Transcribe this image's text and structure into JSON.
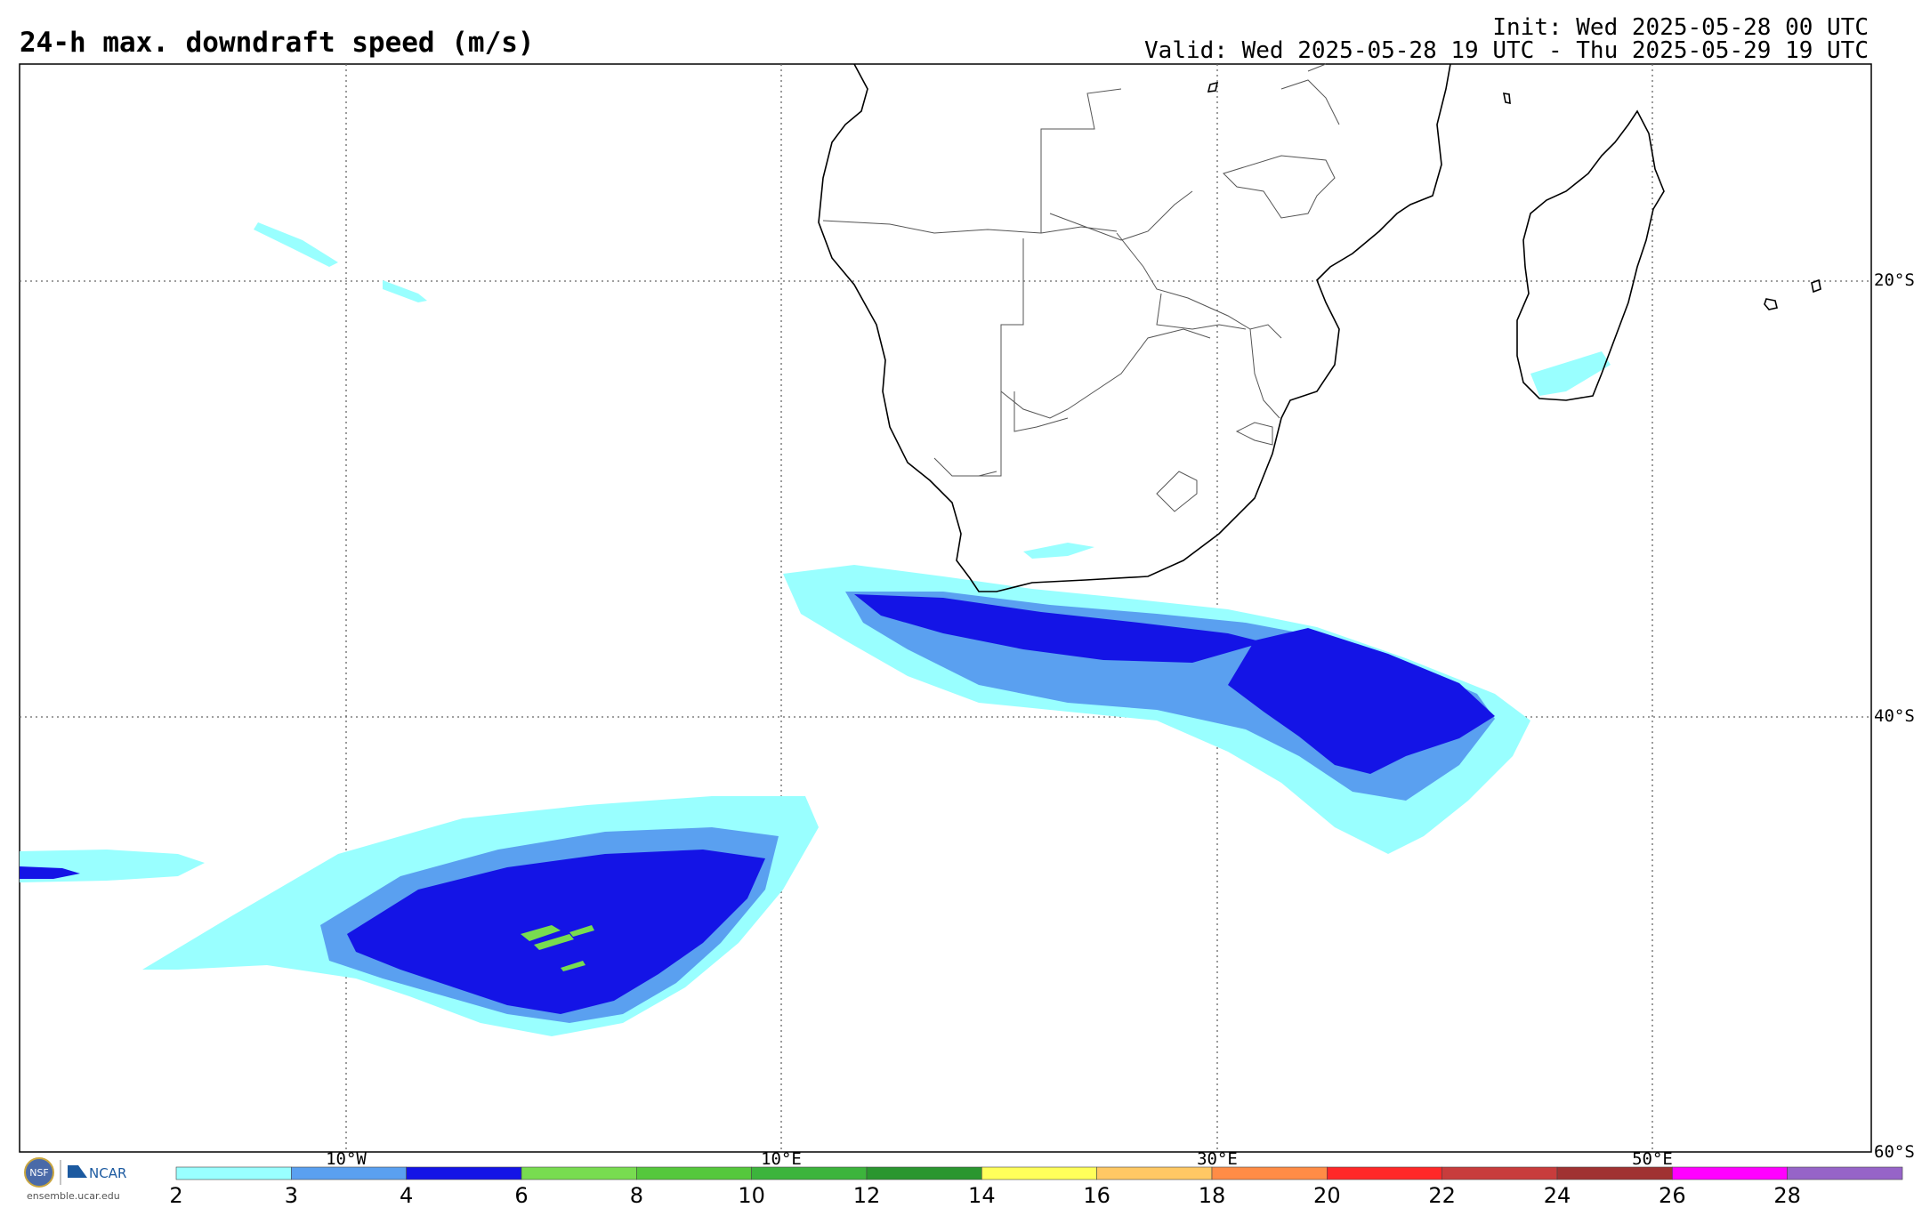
{
  "header": {
    "title": "24-h max. downdraft speed (m/s)",
    "init": "Init: Wed 2025-05-28 00 UTC",
    "valid": "Valid: Wed 2025-05-28 19 UTC - Thu 2025-05-29 19 UTC"
  },
  "map": {
    "lat_labels": [
      "20°S",
      "40°S",
      "60°S"
    ],
    "lon_labels": [
      "10°W",
      "10°E",
      "30°E",
      "50°E"
    ],
    "grid_style": "dotted",
    "fill_colors": {
      "c2_3": "#99ffff",
      "c3_4": "#5aa0f0",
      "c4_6": "#1414e6",
      "c6_8": "#78dc50"
    }
  },
  "colorbar": {
    "ticks": [
      "2",
      "3",
      "4",
      "6",
      "8",
      "10",
      "12",
      "14",
      "16",
      "18",
      "20",
      "22",
      "24",
      "26",
      "28"
    ],
    "colors": [
      "#99ffff",
      "#5aa0f0",
      "#1414e6",
      "#78dc50",
      "#55c83c",
      "#3cb43c",
      "#2a962f",
      "#ffff5a",
      "#ffc864",
      "#ff8c46",
      "#ff2828",
      "#c83c3c",
      "#a03232",
      "#ff00ff",
      "#9664c8"
    ]
  },
  "footer": {
    "logo_text": "NCAR",
    "org_mark": "NSF",
    "url": "ensemble.ucar.edu"
  }
}
